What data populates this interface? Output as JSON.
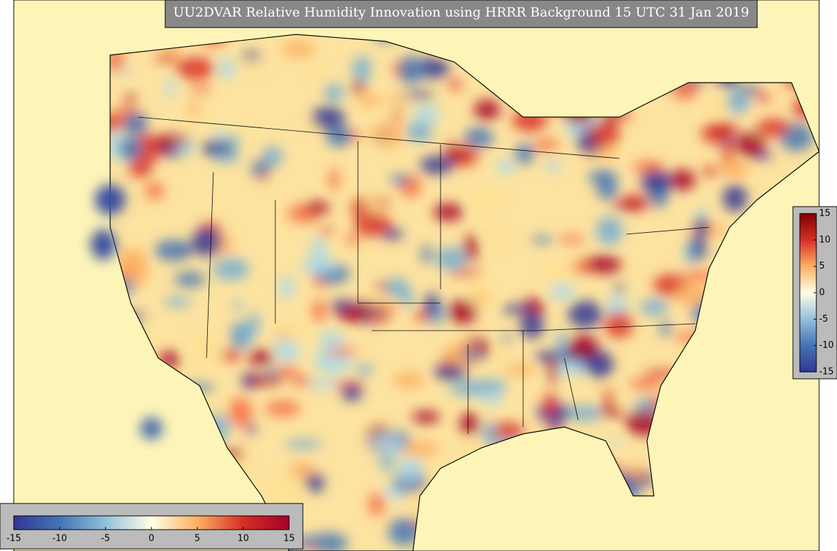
{
  "title": "UU2DVAR Relative Humidity Innovation using HRRR Background 15 UTC 31 Jan 2019",
  "colorbar_bottom": {
    "lim": [
      -15,
      15
    ],
    "ticks": [
      -15,
      -10,
      -5,
      0,
      5,
      10,
      15
    ]
  },
  "colorbar_right": {
    "lim": [
      -15,
      15
    ],
    "ticks": [
      15,
      10,
      5,
      0,
      -5,
      -10,
      -15
    ]
  }
}
